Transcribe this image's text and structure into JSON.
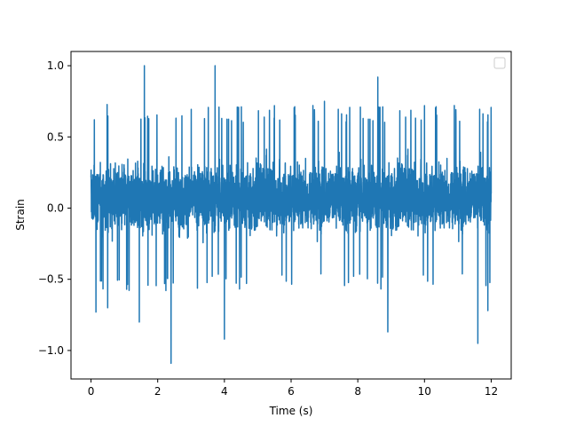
{
  "chart_data": {
    "type": "line",
    "title": "",
    "xlabel": "Time (s)",
    "ylabel": "Strain",
    "xlim": [
      -0.6,
      12.6
    ],
    "ylim": [
      -1.2,
      1.1
    ],
    "xticks": [
      0,
      2,
      4,
      6,
      8,
      10,
      12
    ],
    "xtick_labels": [
      "0",
      "2",
      "4",
      "6",
      "8",
      "10",
      "12"
    ],
    "yticks": [
      -1.0,
      -0.5,
      0.0,
      0.5,
      1.0
    ],
    "ytick_labels": [
      "−1.0",
      "−0.5",
      "0.0",
      "0.5",
      "1.0"
    ],
    "grid": false,
    "legend": {
      "placement": "top-right",
      "entries": []
    },
    "series": [
      {
        "color": "#1f77b4",
        "x_start": 0,
        "x_end": 12,
        "typical_range": [
          -0.45,
          0.6
        ],
        "peaks": [
          {
            "x": 1.6,
            "y": 1.0
          },
          {
            "x": 3.72,
            "y": 1.0
          },
          {
            "x": 8.6,
            "y": 0.92
          },
          {
            "x": 2.4,
            "y": -1.09
          },
          {
            "x": 4.0,
            "y": -0.92
          },
          {
            "x": 1.45,
            "y": -0.8
          },
          {
            "x": 11.6,
            "y": -0.95
          },
          {
            "x": 8.9,
            "y": -0.87
          },
          {
            "x": 11.9,
            "y": -0.72
          },
          {
            "x": 0.15,
            "y": -0.73
          },
          {
            "x": 0.5,
            "y": -0.7
          },
          {
            "x": 0.1,
            "y": 0.62
          },
          {
            "x": 5.5,
            "y": 0.72
          },
          {
            "x": 7.0,
            "y": 0.75
          },
          {
            "x": 10.0,
            "y": 0.72
          }
        ]
      }
    ]
  }
}
